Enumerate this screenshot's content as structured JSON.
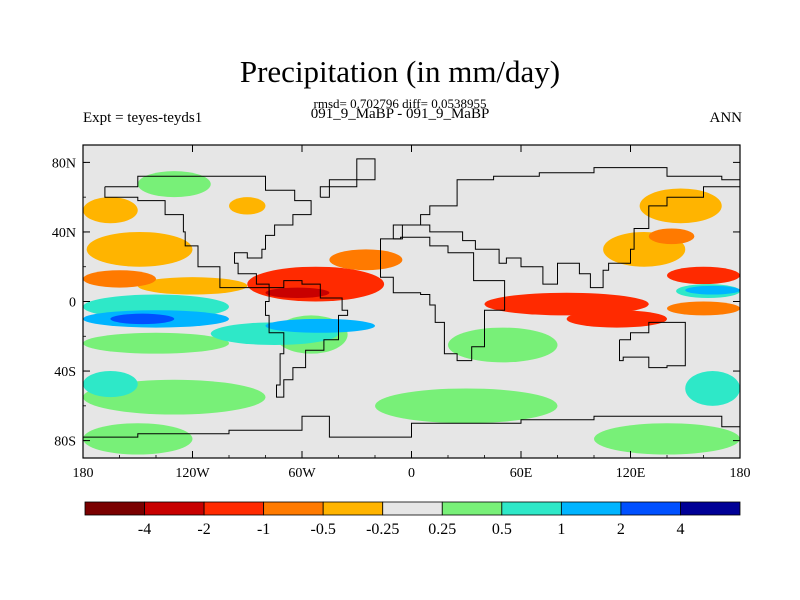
{
  "chart_data": {
    "type": "heatmap",
    "title": "Precipitation (in mm/day)",
    "stats_line": "rmsd= 0.702796 diff= 0.0538955",
    "subtitle": "091_9_MaBP - 091_9_MaBP",
    "left_label": "Expt = teyes-teyds1",
    "right_label": "ANN",
    "xlim": [
      -180,
      180
    ],
    "ylim": [
      -90,
      90
    ],
    "x_ticks": [
      {
        "value": -180,
        "label": "180"
      },
      {
        "value": -120,
        "label": "120W"
      },
      {
        "value": -60,
        "label": "60W"
      },
      {
        "value": 0,
        "label": "0"
      },
      {
        "value": 60,
        "label": "60E"
      },
      {
        "value": 120,
        "label": "120E"
      },
      {
        "value": 180,
        "label": "180"
      }
    ],
    "y_ticks": [
      {
        "value": 80,
        "label": "80N"
      },
      {
        "value": 40,
        "label": "40N"
      },
      {
        "value": 0,
        "label": "0"
      },
      {
        "value": -40,
        "label": "40S"
      },
      {
        "value": -80,
        "label": "80S"
      }
    ],
    "colorbar": {
      "colors": [
        "#7a0000",
        "#c80000",
        "#ff2a00",
        "#ff7a00",
        "#ffb400",
        "#e6e6e6",
        "#78f078",
        "#2ee8c8",
        "#00b4ff",
        "#0050ff",
        "#000096"
      ],
      "levels": [
        "-4",
        "-2",
        "-1",
        "-0.5",
        "-0.25",
        "0.25",
        "0.5",
        "1",
        "2",
        "4"
      ]
    },
    "regions": [
      {
        "level": "-0.5",
        "color": "#ffb400",
        "lon": [
          -178,
          -120
        ],
        "lat": [
          20,
          40
        ]
      },
      {
        "level": "-0.5",
        "color": "#ffb400",
        "lon": [
          -180,
          -150
        ],
        "lat": [
          45,
          60
        ]
      },
      {
        "level": "-0.5",
        "color": "#ffb400",
        "lon": [
          -100,
          -80
        ],
        "lat": [
          50,
          60
        ]
      },
      {
        "level": "-0.5",
        "color": "#ffb400",
        "lon": [
          105,
          150
        ],
        "lat": [
          20,
          40
        ]
      },
      {
        "level": "-0.5",
        "color": "#ffb400",
        "lon": [
          125,
          170
        ],
        "lat": [
          45,
          65
        ]
      },
      {
        "level": "-0.5",
        "color": "#ffb400",
        "lon": [
          -150,
          -90
        ],
        "lat": [
          4,
          14
        ]
      },
      {
        "level": "-1",
        "color": "#ff7a00",
        "lon": [
          -180,
          -140
        ],
        "lat": [
          8,
          18
        ]
      },
      {
        "level": "-1",
        "color": "#ff7a00",
        "lon": [
          -45,
          -5
        ],
        "lat": [
          18,
          30
        ]
      },
      {
        "level": "-1",
        "color": "#ff7a00",
        "lon": [
          140,
          180
        ],
        "lat": [
          -8,
          0
        ]
      },
      {
        "level": "-1",
        "color": "#ff7a00",
        "lon": [
          130,
          155
        ],
        "lat": [
          33,
          42
        ]
      },
      {
        "level": "-2",
        "color": "#ff2a00",
        "lon": [
          -90,
          -15
        ],
        "lat": [
          0,
          20
        ]
      },
      {
        "level": "-2",
        "color": "#ff2a00",
        "lon": [
          40,
          130
        ],
        "lat": [
          -8,
          5
        ]
      },
      {
        "level": "-2",
        "color": "#ff2a00",
        "lon": [
          85,
          140
        ],
        "lat": [
          -15,
          -5
        ]
      },
      {
        "level": "-2",
        "color": "#ff2a00",
        "lon": [
          140,
          180
        ],
        "lat": [
          10,
          20
        ]
      },
      {
        "level": "-4",
        "color": "#c80000",
        "lon": [
          -80,
          -45
        ],
        "lat": [
          2,
          8
        ]
      },
      {
        "level": "0.5",
        "color": "#78f078",
        "lon": [
          -180,
          -100
        ],
        "lat": [
          -30,
          -18
        ]
      },
      {
        "level": "0.5",
        "color": "#78f078",
        "lon": [
          -75,
          -35
        ],
        "lat": [
          -30,
          -8
        ]
      },
      {
        "level": "0.5",
        "color": "#78f078",
        "lon": [
          20,
          80
        ],
        "lat": [
          -35,
          -15
        ]
      },
      {
        "level": "0.5",
        "color": "#78f078",
        "lon": [
          -180,
          -80
        ],
        "lat": [
          -65,
          -45
        ]
      },
      {
        "level": "0.5",
        "color": "#78f078",
        "lon": [
          -20,
          80
        ],
        "lat": [
          -70,
          -50
        ]
      },
      {
        "level": "0.5",
        "color": "#78f078",
        "lon": [
          -180,
          -120
        ],
        "lat": [
          -88,
          -70
        ]
      },
      {
        "level": "0.5",
        "color": "#78f078",
        "lon": [
          100,
          180
        ],
        "lat": [
          -88,
          -70
        ]
      },
      {
        "level": "0.5",
        "color": "#78f078",
        "lon": [
          -150,
          -110
        ],
        "lat": [
          60,
          75
        ]
      },
      {
        "level": "1",
        "color": "#2ee8c8",
        "lon": [
          -180,
          -100
        ],
        "lat": [
          -10,
          4
        ]
      },
      {
        "level": "1",
        "color": "#2ee8c8",
        "lon": [
          -110,
          -40
        ],
        "lat": [
          -25,
          -12
        ]
      },
      {
        "level": "1",
        "color": "#2ee8c8",
        "lon": [
          145,
          180
        ],
        "lat": [
          2,
          10
        ]
      },
      {
        "level": "1",
        "color": "#2ee8c8",
        "lon": [
          -180,
          -150
        ],
        "lat": [
          -55,
          -40
        ]
      },
      {
        "level": "1",
        "color": "#2ee8c8",
        "lon": [
          150,
          180
        ],
        "lat": [
          -60,
          -40
        ]
      },
      {
        "level": "2",
        "color": "#00b4ff",
        "lon": [
          -180,
          -100
        ],
        "lat": [
          -15,
          -5
        ]
      },
      {
        "level": "2",
        "color": "#00b4ff",
        "lon": [
          -80,
          -20
        ],
        "lat": [
          -18,
          -10
        ]
      },
      {
        "level": "2",
        "color": "#00b4ff",
        "lon": [
          150,
          180
        ],
        "lat": [
          4,
          9
        ]
      },
      {
        "level": "4",
        "color": "#0050ff",
        "lon": [
          -165,
          -130
        ],
        "lat": [
          -13,
          -7
        ]
      }
    ]
  }
}
